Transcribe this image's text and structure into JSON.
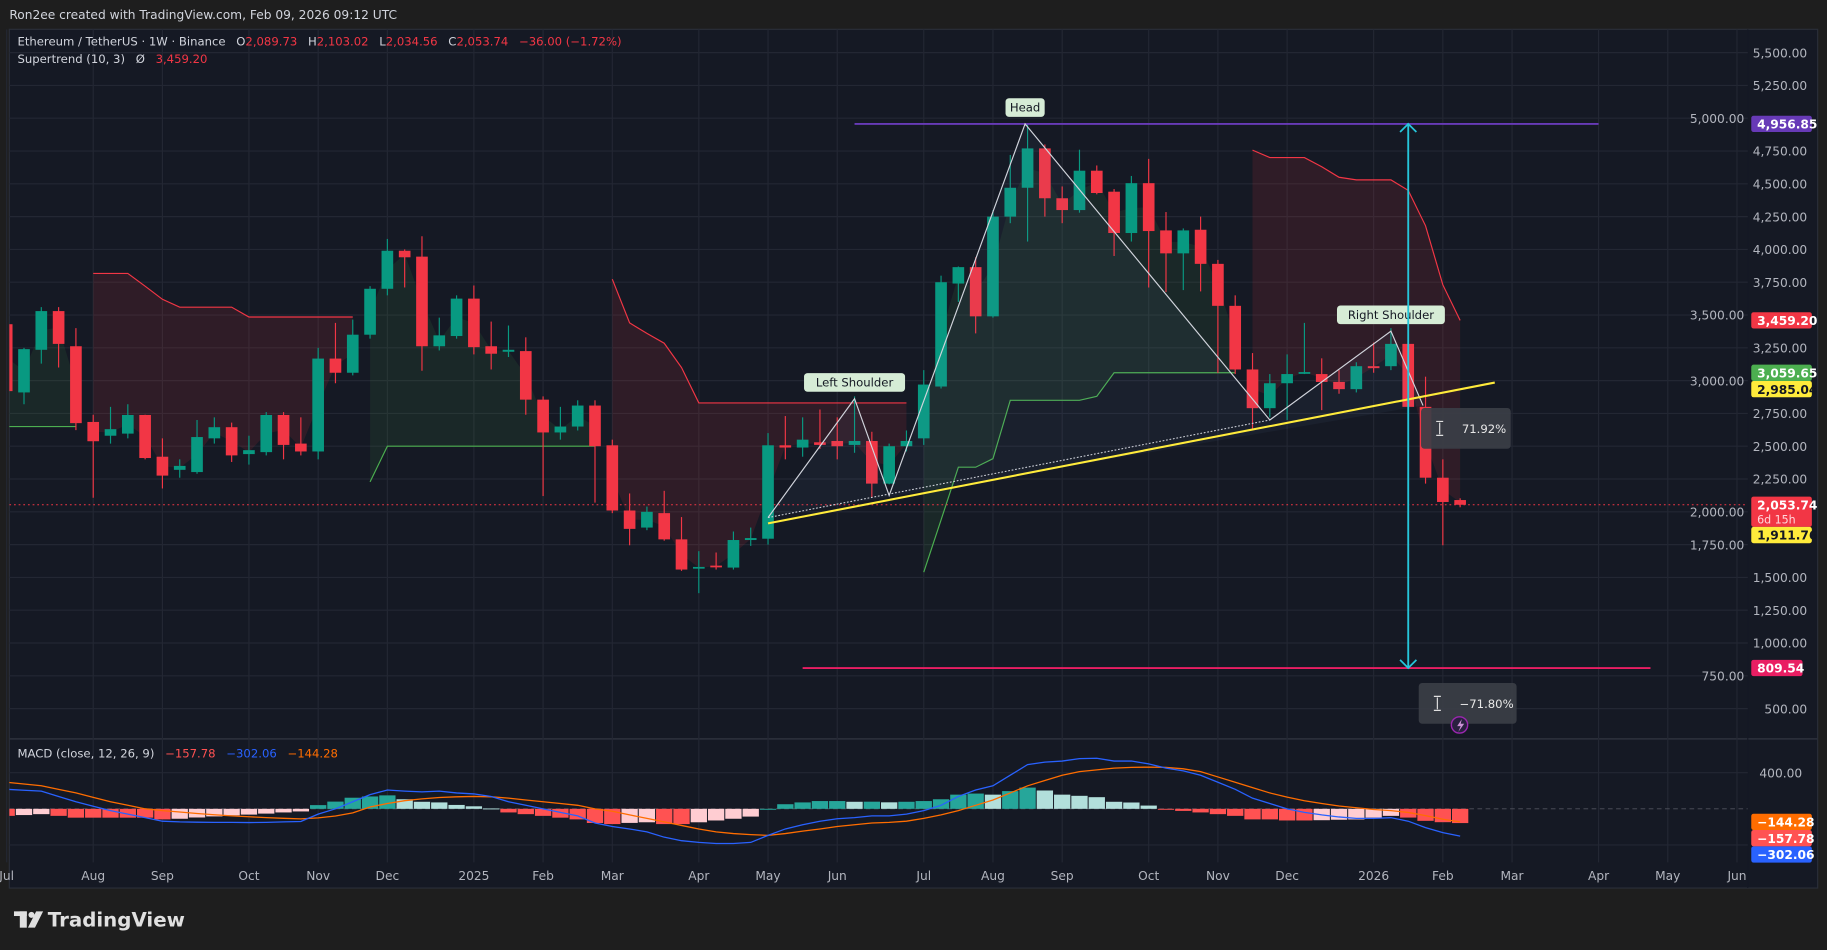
{
  "header": {
    "credit": "Ron2ee created with TradingView.com, Feb 09, 2026 09:12 UTC"
  },
  "legend": {
    "symbol": "Ethereum / TetherUS · 1W · Binance",
    "o_label": "O",
    "o": "2,089.73",
    "h_label": "H",
    "h": "2,103.02",
    "l_label": "L",
    "l": "2,034.56",
    "c_label": "C",
    "c": "2,053.74",
    "change": "−36.00 (−1.72%)",
    "supertrend_label": "Supertrend (10, 3)",
    "supertrend_symbol": "Ø",
    "supertrend_value": "3,459.20",
    "macd_label": "MACD (close, 12, 26, 9)",
    "macd_hist": "−157.78",
    "macd_macd": "−302.06",
    "macd_signal": "−144.28"
  },
  "logo": {
    "text": "TradingView"
  },
  "colors": {
    "up": "#089981",
    "down": "#f23645",
    "st_up": "#4caf50",
    "st_down": "#f23645",
    "macd": "#2962ff",
    "signal": "#ff6d00",
    "neckline": "#ffeb3b",
    "head_line": "#673ab7",
    "target_line": "#e91e63",
    "measure": "#26c6da"
  },
  "chart_data": {
    "type": "candlestick",
    "timeframe": "1W",
    "y_ticks": [
      "5,500.00",
      "5,250.00",
      "5,000.00",
      "4,750.00",
      "4,500.00",
      "4,250.00",
      "4,000.00",
      "3,750.00",
      "3,500.00",
      "3,250.00",
      "3,000.00",
      "2,750.00",
      "2,500.00",
      "2,250.00",
      "2,000.00",
      "1,750.00",
      "1,500.00",
      "1,250.00",
      "1,000.00",
      "750.00",
      "500.00"
    ],
    "y_tick_values": [
      5500,
      5250,
      5000,
      4750,
      4500,
      4250,
      4000,
      3750,
      3500,
      3250,
      3000,
      2750,
      2500,
      2250,
      2000,
      1750,
      1500,
      1250,
      1000,
      750,
      500
    ],
    "ylim": [
      500,
      5500
    ],
    "x_ticks": [
      {
        "label": "Jul",
        "date": "2024-07-01"
      },
      {
        "label": "Aug",
        "date": "2024-08-05"
      },
      {
        "label": "Sep",
        "date": "2024-09-02"
      },
      {
        "label": "Oct",
        "date": "2024-10-07"
      },
      {
        "label": "Nov",
        "date": "2024-11-04"
      },
      {
        "label": "Dec",
        "date": "2024-12-02"
      },
      {
        "label": "2025",
        "date": "2025-01-06"
      },
      {
        "label": "Feb",
        "date": "2025-02-03"
      },
      {
        "label": "Mar",
        "date": "2025-03-03"
      },
      {
        "label": "Apr",
        "date": "2025-04-07"
      },
      {
        "label": "May",
        "date": "2025-05-05"
      },
      {
        "label": "Jun",
        "date": "2025-06-02"
      },
      {
        "label": "Jul",
        "date": "2025-07-07"
      },
      {
        "label": "Aug",
        "date": "2025-08-04"
      },
      {
        "label": "Sep",
        "date": "2025-09-01"
      },
      {
        "label": "Oct",
        "date": "2025-10-06"
      },
      {
        "label": "Nov",
        "date": "2025-11-03"
      },
      {
        "label": "Dec",
        "date": "2025-12-01"
      },
      {
        "label": "2026",
        "date": "2026-01-05"
      },
      {
        "label": "Feb",
        "date": "2026-02-02"
      },
      {
        "label": "Mar",
        "date": "2026-03-02"
      },
      {
        "label": "Apr",
        "date": "2026-04-06"
      },
      {
        "label": "May",
        "date": "2026-05-04"
      },
      {
        "label": "Jun",
        "date": "2026-06-01"
      }
    ],
    "candles_columns": [
      "date",
      "open",
      "high",
      "low",
      "close"
    ],
    "candles": [
      [
        "2024-07-01",
        3430,
        3520,
        2810,
        2920
      ],
      [
        "2024-07-08",
        2910,
        3250,
        2820,
        3240
      ],
      [
        "2024-07-15",
        3235,
        3560,
        3130,
        3530
      ],
      [
        "2024-07-22",
        3530,
        3560,
        3100,
        3280
      ],
      [
        "2024-07-29",
        3262,
        3400,
        2623,
        2676
      ],
      [
        "2024-08-05",
        2685,
        2740,
        2107,
        2538
      ],
      [
        "2024-08-12",
        2580,
        2800,
        2520,
        2630
      ],
      [
        "2024-08-19",
        2596,
        2820,
        2560,
        2738
      ],
      [
        "2024-08-26",
        2738,
        2740,
        2400,
        2410
      ],
      [
        "2024-09-02",
        2420,
        2560,
        2178,
        2276
      ],
      [
        "2024-09-09",
        2320,
        2400,
        2260,
        2350
      ],
      [
        "2024-09-16",
        2303,
        2700,
        2290,
        2570
      ],
      [
        "2024-09-23",
        2560,
        2720,
        2520,
        2645
      ],
      [
        "2024-09-30",
        2645,
        2680,
        2380,
        2430
      ],
      [
        "2024-10-07",
        2440,
        2580,
        2360,
        2470
      ],
      [
        "2024-10-14",
        2455,
        2760,
        2430,
        2738
      ],
      [
        "2024-10-21",
        2738,
        2760,
        2400,
        2510
      ],
      [
        "2024-10-28",
        2520,
        2720,
        2430,
        2460
      ],
      [
        "2024-11-04",
        2460,
        3250,
        2400,
        3168
      ],
      [
        "2024-11-11",
        3168,
        3440,
        2980,
        3060
      ],
      [
        "2024-11-18",
        3060,
        3465,
        3040,
        3350
      ],
      [
        "2024-11-25",
        3350,
        3720,
        3320,
        3700
      ],
      [
        "2024-12-02",
        3700,
        4080,
        3650,
        3990
      ],
      [
        "2024-12-09",
        3990,
        4000,
        3710,
        3940
      ],
      [
        "2024-12-16",
        3945,
        4100,
        3075,
        3262
      ],
      [
        "2024-12-23",
        3262,
        3480,
        3230,
        3345
      ],
      [
        "2024-12-30",
        3340,
        3650,
        3320,
        3625
      ],
      [
        "2025-01-06",
        3625,
        3725,
        3200,
        3255
      ],
      [
        "2025-01-13",
        3262,
        3450,
        3085,
        3205
      ],
      [
        "2025-01-20",
        3220,
        3420,
        3180,
        3235
      ],
      [
        "2025-01-27",
        3225,
        3330,
        2740,
        2855
      ],
      [
        "2025-02-03",
        2855,
        2880,
        2120,
        2605
      ],
      [
        "2025-02-10",
        2605,
        2800,
        2550,
        2650
      ],
      [
        "2025-02-17",
        2650,
        2850,
        2620,
        2810
      ],
      [
        "2025-02-24",
        2810,
        2850,
        2070,
        2500
      ],
      [
        "2025-03-03",
        2507,
        2550,
        1990,
        2010
      ],
      [
        "2025-03-10",
        2010,
        2140,
        1745,
        1870
      ],
      [
        "2025-03-17",
        1880,
        2040,
        1860,
        2000
      ],
      [
        "2025-03-24",
        1990,
        2160,
        1780,
        1790
      ],
      [
        "2025-03-31",
        1790,
        1960,
        1550,
        1560
      ],
      [
        "2025-04-07",
        1570,
        1700,
        1380,
        1580
      ],
      [
        "2025-04-14",
        1590,
        1690,
        1560,
        1580
      ],
      [
        "2025-04-21",
        1575,
        1850,
        1560,
        1785
      ],
      [
        "2025-04-28",
        1785,
        1880,
        1740,
        1800
      ],
      [
        "2025-05-05",
        1795,
        2600,
        1750,
        2507
      ],
      [
        "2025-05-12",
        2507,
        2730,
        2400,
        2490
      ],
      [
        "2025-05-19",
        2490,
        2720,
        2420,
        2550
      ],
      [
        "2025-05-26",
        2530,
        2780,
        2480,
        2510
      ],
      [
        "2025-06-02",
        2540,
        2720,
        2400,
        2500
      ],
      [
        "2025-06-09",
        2510,
        2880,
        2450,
        2540
      ],
      [
        "2025-06-16",
        2540,
        2610,
        2110,
        2215
      ],
      [
        "2025-06-23",
        2215,
        2520,
        2210,
        2500
      ],
      [
        "2025-06-30",
        2500,
        2620,
        2460,
        2540
      ],
      [
        "2025-07-07",
        2560,
        3080,
        2510,
        2970
      ],
      [
        "2025-07-14",
        2955,
        3800,
        2940,
        3750
      ],
      [
        "2025-07-21",
        3740,
        3870,
        3600,
        3865
      ],
      [
        "2025-07-28",
        3865,
        3940,
        3360,
        3490
      ],
      [
        "2025-08-04",
        3490,
        4300,
        3480,
        4250
      ],
      [
        "2025-08-11",
        4250,
        4720,
        4200,
        4470
      ],
      [
        "2025-08-18",
        4470,
        4956.85,
        4060,
        4770
      ],
      [
        "2025-08-25",
        4770,
        4800,
        4250,
        4390
      ],
      [
        "2025-09-01",
        4390,
        4480,
        4200,
        4300
      ],
      [
        "2025-09-08",
        4300,
        4760,
        4280,
        4600
      ],
      [
        "2025-09-15",
        4600,
        4640,
        4420,
        4430
      ],
      [
        "2025-09-22",
        4440,
        4460,
        3950,
        4125
      ],
      [
        "2025-09-29",
        4125,
        4560,
        4060,
        4505
      ],
      [
        "2025-10-06",
        4505,
        4690,
        3710,
        4140
      ],
      [
        "2025-10-13",
        4145,
        4285,
        3675,
        3970
      ],
      [
        "2025-10-20",
        3970,
        4160,
        3690,
        4145
      ],
      [
        "2025-10-27",
        4150,
        4250,
        3680,
        3890
      ],
      [
        "2025-11-03",
        3890,
        3920,
        3058,
        3570
      ],
      [
        "2025-11-10",
        3570,
        3650,
        3050,
        3085
      ],
      [
        "2025-11-17",
        3085,
        3210,
        2620,
        2790
      ],
      [
        "2025-11-24",
        2790,
        3050,
        2720,
        2980
      ],
      [
        "2025-12-01",
        2980,
        3200,
        2700,
        3050
      ],
      [
        "2025-12-08",
        3060,
        3440,
        3050,
        3065
      ],
      [
        "2025-12-15",
        3050,
        3170,
        2775,
        2990
      ],
      [
        "2025-12-22",
        2990,
        3080,
        2900,
        2935
      ],
      [
        "2025-12-29",
        2935,
        3140,
        2910,
        3110
      ],
      [
        "2026-01-05",
        3110,
        3290,
        3060,
        3095
      ],
      [
        "2026-01-12",
        3110,
        3400,
        3080,
        3280
      ],
      [
        "2026-01-19",
        3280,
        3300,
        2780,
        2800
      ],
      [
        "2026-01-26",
        2800,
        3030,
        2215,
        2260
      ],
      [
        "2026-02-02",
        2260,
        2400,
        1745,
        2075
      ],
      [
        "2026-02-09",
        2089.73,
        2103.02,
        2034.56,
        2053.74
      ]
    ],
    "last_price": 2053.74,
    "supertrend": {
      "params": "10, 3",
      "values": [
        2650,
        2650,
        2650,
        2650,
        2650,
        3817,
        3817,
        3817,
        3720,
        3620,
        3560,
        3560,
        3560,
        3560,
        3485,
        3485,
        3485,
        3485,
        3485,
        3485,
        3485,
        2228,
        2500,
        2500,
        2500,
        2500,
        2500,
        2500,
        2500,
        2500,
        2500,
        2500,
        2500,
        2500,
        2500,
        3773,
        3440,
        3360,
        3285,
        3100,
        2830,
        2830,
        2830,
        2830,
        2830,
        2830,
        2830,
        2830,
        2830,
        2830,
        2830,
        2830,
        2830,
        1540,
        1938,
        2340,
        2340,
        2405,
        2850,
        2850,
        2850,
        2850,
        2850,
        2880,
        3060,
        3060,
        3060,
        3060,
        3060,
        3060,
        3060,
        3060,
        4757,
        4700,
        4700,
        4700,
        4630,
        4550,
        4530,
        4530,
        4530,
        4450,
        4180,
        3730,
        3459.2
      ],
      "direction": [
        "up",
        "up",
        "up",
        "up",
        "up",
        "down",
        "down",
        "down",
        "down",
        "down",
        "down",
        "down",
        "down",
        "down",
        "down",
        "down",
        "down",
        "down",
        "down",
        "down",
        "down",
        "up",
        "up",
        "up",
        "up",
        "up",
        "up",
        "up",
        "up",
        "up",
        "up",
        "up",
        "up",
        "up",
        "up",
        "down",
        "down",
        "down",
        "down",
        "down",
        "down",
        "down",
        "down",
        "down",
        "down",
        "down",
        "down",
        "down",
        "down",
        "down",
        "down",
        "down",
        "down",
        "up",
        "up",
        "up",
        "up",
        "up",
        "up",
        "up",
        "up",
        "up",
        "up",
        "up",
        "up",
        "up",
        "up",
        "up",
        "up",
        "up",
        "up",
        "up",
        "down",
        "down",
        "down",
        "down",
        "down",
        "down",
        "down",
        "down",
        "down",
        "down",
        "down",
        "down",
        "down"
      ]
    },
    "macd": {
      "params": "close, 12, 26, 9",
      "macd": [
        216,
        206,
        196,
        137,
        78,
        29,
        -20,
        -59,
        -98,
        -137,
        -145,
        -148,
        -150,
        -150,
        -152,
        -150,
        -145,
        -140,
        -59,
        0,
        78,
        157,
        208,
        196,
        188,
        196,
        176,
        165,
        137,
        78,
        39,
        0,
        -39,
        -78,
        -157,
        -196,
        -223,
        -255,
        -314,
        -353,
        -372,
        -384,
        -384,
        -372,
        -294,
        -223,
        -176,
        -137,
        -110,
        -98,
        -78,
        -78,
        -59,
        -20,
        39,
        137,
        208,
        255,
        372,
        490,
        517,
        529,
        556,
        560,
        529,
        529,
        498,
        451,
        420,
        372,
        294,
        216,
        118,
        59,
        0,
        -39,
        -67,
        -90,
        -106,
        -106,
        -98,
        -137,
        -208,
        -263,
        -302.06
      ],
      "signal": [
        294,
        275,
        255,
        215,
        176,
        127,
        78,
        39,
        0,
        -20,
        -35,
        -52,
        -66,
        -78,
        -88,
        -97,
        -105,
        -111,
        -100,
        -80,
        -45,
        20,
        59,
        90,
        110,
        125,
        133,
        137,
        133,
        118,
        98,
        78,
        59,
        39,
        0,
        -27,
        -67,
        -106,
        -145,
        -184,
        -223,
        -255,
        -274,
        -286,
        -294,
        -274,
        -247,
        -223,
        -196,
        -176,
        -157,
        -150,
        -137,
        -106,
        -67,
        -20,
        39,
        98,
        176,
        255,
        314,
        372,
        412,
        431,
        451,
        459,
        462,
        459,
        443,
        412,
        353,
        294,
        235,
        176,
        129,
        90,
        59,
        31,
        12,
        -8,
        -20,
        -40,
        -75,
        -115,
        -144.28
      ],
      "y_tick": "400.00",
      "y_tick_value": 400
    },
    "pattern": {
      "points": [
        [
          "2025-05-05",
          1956
        ],
        [
          "2025-06-09",
          2862
        ],
        [
          "2025-06-23",
          2125
        ],
        [
          "2025-08-17",
          4956.85
        ],
        [
          "2025-11-24",
          2700
        ],
        [
          "2026-01-12",
          3377
        ],
        [
          "2026-01-25",
          2810
        ]
      ],
      "labels": [
        {
          "text": "Left Shoulder",
          "point": 1
        },
        {
          "text": "Head",
          "point": 3
        },
        {
          "text": "Right Shoulder",
          "point": 5
        }
      ]
    },
    "neckline": {
      "from": [
        "2025-05-05",
        1911.76
      ],
      "to": [
        "2026-02-23",
        2985.04
      ]
    },
    "head_level": {
      "price": 4956.85,
      "from": "2025-06-09",
      "to": "2026-04-06"
    },
    "target_level": {
      "price": 809.54,
      "from": "2025-05-19",
      "to": "2026-04-27"
    },
    "measure": {
      "date": "2026-01-19",
      "from": 4956.85,
      "to": 809.54,
      "up_label": "71.92%",
      "down_label": "−71.80%"
    },
    "price_badges": [
      {
        "text": "4,956.85",
        "price": 4956.85,
        "bg": "#673ab7",
        "fg": "#ffffff"
      },
      {
        "text": "3,459.20",
        "price": 3459.2,
        "bg": "#f23645",
        "fg": "#ffffff"
      },
      {
        "text": "3,059.65",
        "price": 3059.65,
        "bg": "#4caf50",
        "fg": "#ffffff"
      },
      {
        "text": "2,985.04",
        "price": 2985.04,
        "bg": "#ffeb3b",
        "fg": "#131722"
      },
      {
        "text": "2,053.74",
        "sub": "6d 15h",
        "price": 2053.74,
        "bg": "#f23645",
        "fg": "#ffffff"
      },
      {
        "text": "1,911.76",
        "price": 1911.76,
        "bg": "#ffeb3b",
        "fg": "#131722"
      },
      {
        "text": "809.54",
        "price": 809.54,
        "bg": "#e91e63",
        "fg": "#ffffff"
      }
    ],
    "macd_badges": [
      {
        "text": "−144.28",
        "value": -144.28,
        "bg": "#ff6d00",
        "fg": "#ffffff"
      },
      {
        "text": "−157.78",
        "value": -157.78,
        "bg": "#ff5252",
        "fg": "#ffffff"
      },
      {
        "text": "−302.06",
        "value": -302.06,
        "bg": "#2962ff",
        "fg": "#ffffff"
      }
    ]
  }
}
